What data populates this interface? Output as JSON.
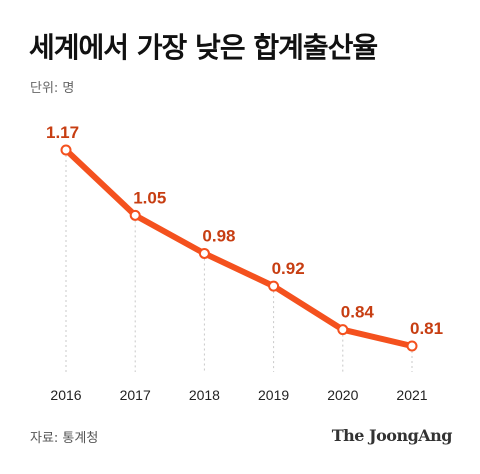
{
  "title": "세계에서 가장 낮은 합계출산율",
  "unit_label": "단위: 명",
  "source": "자료: 통계청",
  "brand": "The JoongAng",
  "colors": {
    "line": "#f4511e",
    "label": "#c73e12",
    "grid": "#c8c8c8"
  },
  "chart_data": {
    "type": "line",
    "title": "세계에서 가장 낮은 합계출산율",
    "ylabel": "",
    "xlabel": "",
    "categories": [
      "2016",
      "2017",
      "2018",
      "2019",
      "2020",
      "2021"
    ],
    "series": [
      {
        "values": [
          1.17,
          1.05,
          0.98,
          0.92,
          0.84,
          0.81
        ]
      }
    ],
    "data_labels": [
      "1.17",
      "1.05",
      "0.98",
      "0.92",
      "0.84",
      "0.81"
    ],
    "ylim": [
      0.7,
      1.25
    ],
    "grid": "vertical-dotted",
    "legend": "none"
  }
}
